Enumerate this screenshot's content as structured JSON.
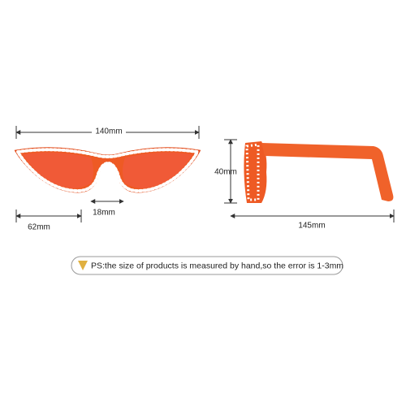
{
  "dimensions": {
    "width": "140mm",
    "lens_width": "62mm",
    "bridge": "18mm",
    "height": "40mm",
    "temple": "145mm"
  },
  "note": "PS:the size of products is measured by hand,so the error is 1-3mm"
}
